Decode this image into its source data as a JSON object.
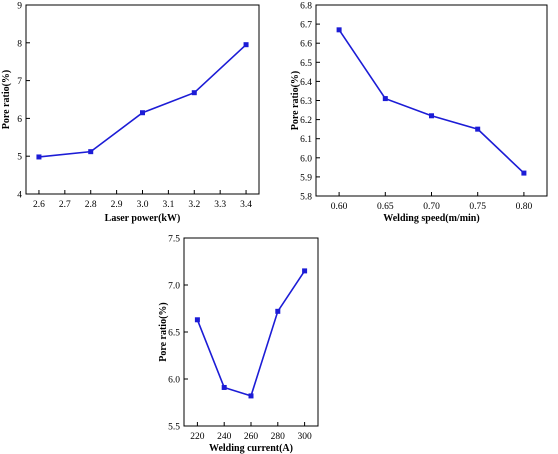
{
  "chart_data": [
    {
      "type": "line",
      "xlabel": "Laser power(kW)",
      "ylabel": "Pore ratio(%)",
      "xlim": [
        2.55,
        3.45
      ],
      "ylim": [
        4,
        9
      ],
      "xticks": [
        "2.6",
        "2.7",
        "2.8",
        "2.9",
        "3.0",
        "3.1",
        "3.2",
        "3.3",
        "3.4"
      ],
      "xtick_values": [
        2.6,
        2.7,
        2.8,
        2.9,
        3.0,
        3.1,
        3.2,
        3.3,
        3.4
      ],
      "yticks": [
        "4",
        "5",
        "6",
        "7",
        "8",
        "9"
      ],
      "ytick_values": [
        4,
        5,
        6,
        7,
        8,
        9
      ],
      "x": [
        2.6,
        2.8,
        3.0,
        3.2,
        3.4
      ],
      "y": [
        4.98,
        5.12,
        6.15,
        6.68,
        7.95
      ],
      "color": "#1c1cd6"
    },
    {
      "type": "line",
      "xlabel": "Welding speed(m/min)",
      "ylabel": "Pore ratio(%)",
      "xlim": [
        0.575,
        0.825
      ],
      "ylim": [
        5.8,
        6.8
      ],
      "xticks": [
        "0.60",
        "0.65",
        "0.70",
        "0.75",
        "0.80"
      ],
      "xtick_values": [
        0.6,
        0.65,
        0.7,
        0.75,
        0.8
      ],
      "yticks": [
        "5.8",
        "5.9",
        "6.0",
        "6.1",
        "6.2",
        "6.3",
        "6.4",
        "6.5",
        "6.6",
        "6.7",
        "6.8"
      ],
      "ytick_values": [
        5.8,
        5.9,
        6.0,
        6.1,
        6.2,
        6.3,
        6.4,
        6.5,
        6.6,
        6.7,
        6.8
      ],
      "x": [
        0.6,
        0.65,
        0.7,
        0.75,
        0.8
      ],
      "y": [
        6.67,
        6.31,
        6.22,
        6.15,
        5.92
      ],
      "color": "#1c1cd6"
    },
    {
      "type": "line",
      "xlabel": "Welding current(A)",
      "ylabel": "Pore ratio(%)",
      "xlim": [
        210,
        310
      ],
      "ylim": [
        5.5,
        7.5
      ],
      "xticks": [
        "220",
        "240",
        "260",
        "280",
        "300"
      ],
      "xtick_values": [
        220,
        240,
        260,
        280,
        300
      ],
      "yticks": [
        "5.5",
        "6.0",
        "6.5",
        "7.0",
        "7.5"
      ],
      "ytick_values": [
        5.5,
        6.0,
        6.5,
        7.0,
        7.5
      ],
      "x": [
        220,
        240,
        260,
        280,
        300
      ],
      "y": [
        6.63,
        5.91,
        5.82,
        6.72,
        7.15
      ],
      "color": "#1c1cd6"
    }
  ]
}
